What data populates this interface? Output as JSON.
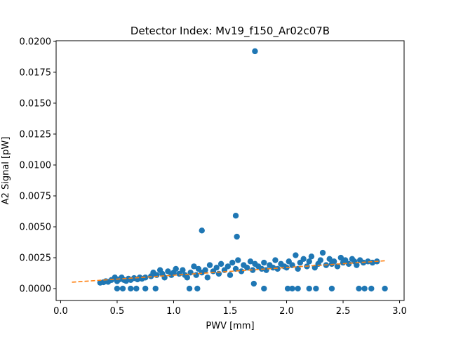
{
  "chart_data": {
    "type": "scatter",
    "title": "Detector Index: Mv19_f150_Ar02c07B",
    "xlabel": "PWV [mm]",
    "ylabel": "A2 Signal [pW]",
    "xlim": [
      -0.04,
      3.04
    ],
    "ylim": [
      -0.00096,
      0.02005
    ],
    "xticks": [
      0.0,
      0.5,
      1.0,
      1.5,
      2.0,
      2.5,
      3.0
    ],
    "xtick_labels": [
      "0.0",
      "0.5",
      "1.0",
      "1.5",
      "2.0",
      "2.5",
      "3.0"
    ],
    "yticks": [
      0.0,
      0.0025,
      0.005,
      0.0075,
      0.01,
      0.0125,
      0.015,
      0.0175,
      0.02
    ],
    "ytick_labels": [
      "0.0000",
      "0.0025",
      "0.0050",
      "0.0075",
      "0.0100",
      "0.0125",
      "0.0150",
      "0.0175",
      "0.0200"
    ],
    "grid": false,
    "colors": {
      "points": "#1f77b4",
      "fit": "#ff7f0e"
    },
    "series": [
      {
        "kind": "points",
        "points": [
          [
            0.35,
            0.00048
          ],
          [
            0.38,
            0.00052
          ],
          [
            0.4,
            0.0006
          ],
          [
            0.42,
            0.00055
          ],
          [
            0.45,
            0.0007
          ],
          [
            0.48,
            0.0009
          ],
          [
            0.5,
            0.0006
          ],
          [
            0.52,
            0.00075
          ],
          [
            0.54,
            0.0009
          ],
          [
            0.56,
            0.0007
          ],
          [
            0.58,
            0.00062
          ],
          [
            0.6,
            0.0008
          ],
          [
            0.62,
            0.0007
          ],
          [
            0.65,
            0.00085
          ],
          [
            0.68,
            0.00075
          ],
          [
            0.7,
            0.0009
          ],
          [
            0.72,
            0.0008
          ],
          [
            0.75,
            0.0009
          ],
          [
            0.8,
            0.001
          ],
          [
            0.82,
            0.0013
          ],
          [
            0.85,
            0.0011
          ],
          [
            0.88,
            0.0015
          ],
          [
            0.9,
            0.0012
          ],
          [
            0.92,
            0.0009
          ],
          [
            0.95,
            0.0014
          ],
          [
            0.98,
            0.0011
          ],
          [
            1.0,
            0.0013
          ],
          [
            1.02,
            0.0016
          ],
          [
            1.05,
            0.0012
          ],
          [
            1.08,
            0.0015
          ],
          [
            1.1,
            0.0011
          ],
          [
            1.12,
            0.0009
          ],
          [
            1.15,
            0.0013
          ],
          [
            1.18,
            0.0018
          ],
          [
            1.2,
            0.0011
          ],
          [
            1.22,
            0.0016
          ],
          [
            1.25,
            0.0013
          ],
          [
            1.28,
            0.0015
          ],
          [
            1.3,
            0.0009
          ],
          [
            1.32,
            0.0019
          ],
          [
            1.35,
            0.0014
          ],
          [
            1.38,
            0.0017
          ],
          [
            1.4,
            0.0012
          ],
          [
            1.42,
            0.002
          ],
          [
            1.45,
            0.0015
          ],
          [
            1.48,
            0.0018
          ],
          [
            1.5,
            0.0011
          ],
          [
            1.52,
            0.0021
          ],
          [
            1.55,
            0.0016
          ],
          [
            1.57,
            0.0023
          ],
          [
            1.6,
            0.0014
          ],
          [
            1.62,
            0.0019
          ],
          [
            1.65,
            0.0017
          ],
          [
            1.68,
            0.0022
          ],
          [
            1.7,
            0.0015
          ],
          [
            1.72,
            0.002
          ],
          [
            1.75,
            0.0018
          ],
          [
            1.78,
            0.0016
          ],
          [
            1.8,
            0.0021
          ],
          [
            1.82,
            0.0015
          ],
          [
            1.85,
            0.0019
          ],
          [
            1.88,
            0.0017
          ],
          [
            1.9,
            0.0023
          ],
          [
            1.92,
            0.0016
          ],
          [
            1.95,
            0.002
          ],
          [
            1.98,
            0.0018
          ],
          [
            2.0,
            0.0017
          ],
          [
            2.02,
            0.0022
          ],
          [
            2.05,
            0.0019
          ],
          [
            2.08,
            0.0027
          ],
          [
            2.1,
            0.0016
          ],
          [
            2.12,
            0.0021
          ],
          [
            2.15,
            0.0024
          ],
          [
            2.18,
            0.0018
          ],
          [
            2.2,
            0.0022
          ],
          [
            2.22,
            0.0026
          ],
          [
            2.25,
            0.0017
          ],
          [
            2.28,
            0.002
          ],
          [
            2.3,
            0.0023
          ],
          [
            2.32,
            0.0029
          ],
          [
            2.35,
            0.0019
          ],
          [
            2.38,
            0.0024
          ],
          [
            2.4,
            0.002
          ],
          [
            2.42,
            0.0022
          ],
          [
            2.45,
            0.0018
          ],
          [
            2.48,
            0.0025
          ],
          [
            2.5,
            0.0021
          ],
          [
            2.52,
            0.0023
          ],
          [
            2.55,
            0.002
          ],
          [
            2.58,
            0.0024
          ],
          [
            2.6,
            0.0022
          ],
          [
            2.62,
            0.0019
          ],
          [
            2.65,
            0.0023
          ],
          [
            2.68,
            0.0021
          ],
          [
            2.72,
            0.0022
          ],
          [
            2.76,
            0.0021
          ],
          [
            2.8,
            0.0022
          ],
          [
            0.5,
            0.0
          ],
          [
            0.55,
            0.0
          ],
          [
            0.62,
            0.0
          ],
          [
            0.67,
            0.0
          ],
          [
            0.75,
            0.0
          ],
          [
            0.84,
            0.0
          ],
          [
            1.14,
            0.0
          ],
          [
            1.21,
            0.0
          ],
          [
            1.8,
            0.0
          ],
          [
            2.01,
            0.0
          ],
          [
            2.05,
            0.0
          ],
          [
            2.1,
            0.0
          ],
          [
            2.2,
            0.0
          ],
          [
            2.26,
            0.0
          ],
          [
            2.4,
            0.0
          ],
          [
            2.64,
            0.0
          ],
          [
            2.69,
            0.0
          ],
          [
            2.75,
            0.0
          ],
          [
            2.87,
            0.0
          ],
          [
            1.25,
            0.0047
          ],
          [
            1.55,
            0.0059
          ],
          [
            1.56,
            0.0042
          ],
          [
            1.71,
            0.0004
          ],
          [
            1.72,
            0.0192
          ]
        ]
      },
      {
        "kind": "fit",
        "style": "dashed",
        "points": [
          [
            0.1,
            0.00052
          ],
          [
            2.87,
            0.00225
          ]
        ]
      }
    ]
  }
}
